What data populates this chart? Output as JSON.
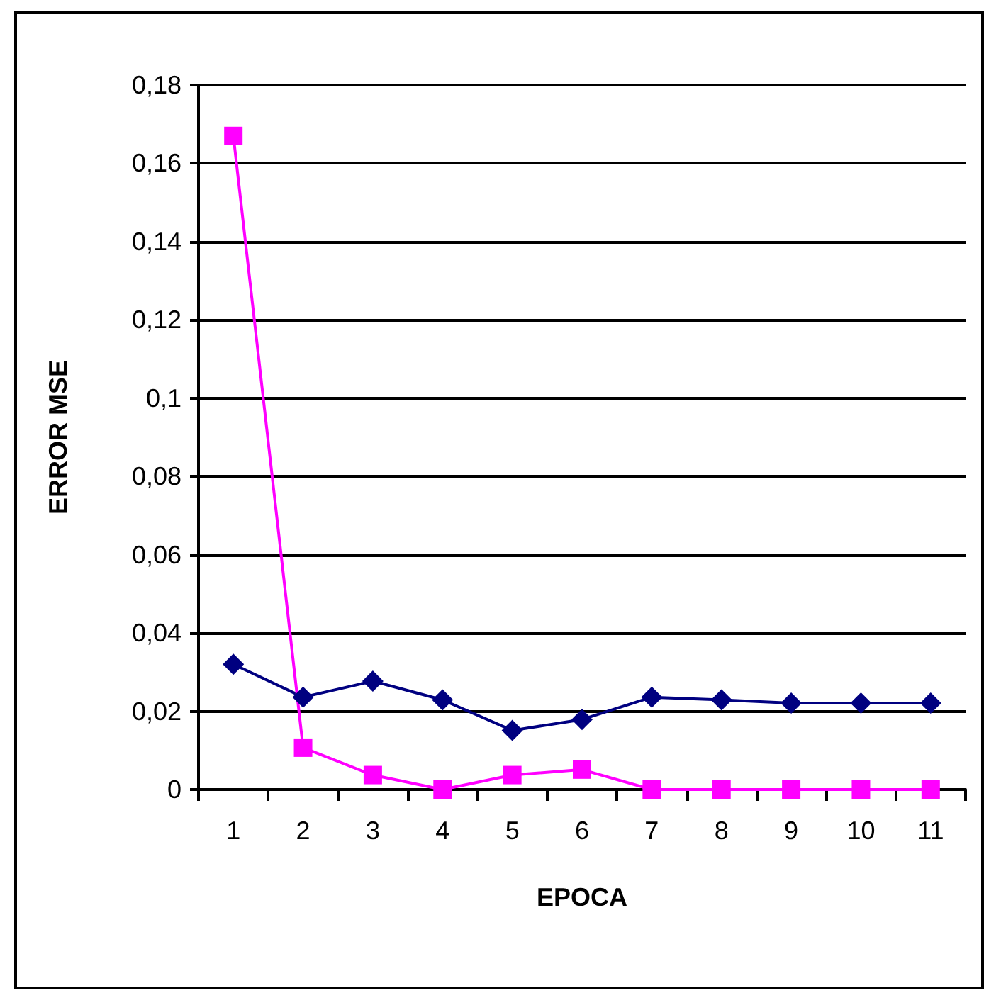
{
  "chart_data": {
    "type": "line",
    "xlabel": "EPOCA",
    "ylabel": "ERROR MSE",
    "categories": [
      "1",
      "2",
      "3",
      "4",
      "5",
      "6",
      "7",
      "8",
      "9",
      "10",
      "11"
    ],
    "series": [
      {
        "color": "#000080",
        "marker": "diamond",
        "values": [
          0.032,
          0.0236,
          0.0277,
          0.0229,
          0.0151,
          0.0179,
          0.0236,
          0.0229,
          0.0221,
          0.0221,
          0.0221
        ]
      },
      {
        "color": "#ff00ff",
        "marker": "square",
        "values": [
          0.167,
          0.0107,
          0.0037,
          0,
          0.0037,
          0.0051,
          0,
          0,
          0,
          0,
          0
        ]
      }
    ],
    "ylim": [
      0,
      0.18
    ],
    "yticks": [
      0,
      {
        "value": 0.02,
        "label": "0,02"
      },
      {
        "value": 0.04,
        "label": "0,04"
      },
      {
        "value": 0.06,
        "label": "0,06"
      },
      {
        "value": 0.08,
        "label": "0,08"
      },
      {
        "value": 0.1,
        "label": "0,1"
      },
      {
        "value": 0.12,
        "label": "0,12"
      },
      {
        "value": 0.14,
        "label": "0,14"
      },
      {
        "value": 0.16,
        "label": "0,16"
      },
      {
        "value": 0.18,
        "label": "0,18"
      }
    ],
    "grid": "y"
  }
}
